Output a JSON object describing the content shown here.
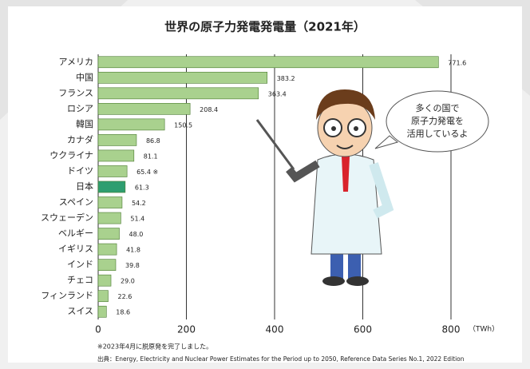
{
  "chart_data": {
    "type": "bar",
    "orientation": "horizontal",
    "title": "世界の原子力発電発電量（2021年）",
    "categories": [
      "アメリカ",
      "中国",
      "フランス",
      "ロシア",
      "韓国",
      "カナダ",
      "ウクライナ",
      "ドイツ",
      "日本",
      "スペイン",
      "スウェーデン",
      "ベルギー",
      "イギリス",
      "インド",
      "チェコ",
      "フィンランド",
      "スイス"
    ],
    "values": [
      771.6,
      383.2,
      363.4,
      208.4,
      150.5,
      86.8,
      81.1,
      65.4,
      61.3,
      54.2,
      51.4,
      48.0,
      41.8,
      39.8,
      29.0,
      22.6,
      18.6
    ],
    "value_labels": [
      "771.6",
      "383.2",
      "363.4",
      "208.4",
      "150.5",
      "86.8",
      "81.1",
      "65.4 ※",
      "61.3",
      "54.2",
      "51.4",
      "48.0",
      "41.8",
      "39.8",
      "29.0",
      "22.6",
      "18.6"
    ],
    "colors": [
      "#a9d18e",
      "#a9d18e",
      "#a9d18e",
      "#a9d18e",
      "#a9d18e",
      "#a9d18e",
      "#a9d18e",
      "#a9d18e",
      "#2e9e70",
      "#a9d18e",
      "#a9d18e",
      "#a9d18e",
      "#a9d18e",
      "#a9d18e",
      "#a9d18e",
      "#a9d18e",
      "#a9d18e"
    ],
    "xlim": [
      0,
      800
    ],
    "xticks": [
      0,
      200,
      400,
      600,
      800
    ],
    "x_unit": "（TWh）",
    "grid": true,
    "annotations": [
      "多くの国で",
      "原子力発電を",
      "活用しているよ"
    ],
    "footnote": "※2023年4月に脱原発を完了しました。",
    "source": "出典：Energy, Electricity and Nuclear Power Estimates for the Period up to 2050, Reference Data Series No.1, 2022 Edition"
  }
}
